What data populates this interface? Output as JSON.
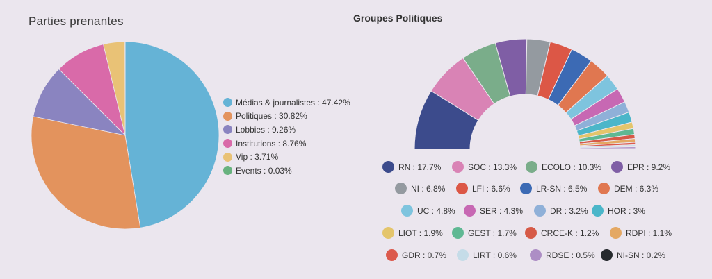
{
  "stakeholders_title": "Parties prenantes",
  "groups_title": "Groupes Politiques",
  "chart_data": [
    {
      "type": "pie",
      "title": "Parties prenantes",
      "series": [
        {
          "name": "Médias & journalistes",
          "value": 47.42,
          "label": "Médias & journalistes : 47.42%",
          "color": "#65b3d6"
        },
        {
          "name": "Politiques",
          "value": 30.82,
          "label": "Politiques : 30.82%",
          "color": "#e3935d"
        },
        {
          "name": "Lobbies",
          "value": 9.26,
          "label": "Lobbies : 9.26%",
          "color": "#8a84c0"
        },
        {
          "name": "Institutions",
          "value": 8.76,
          "label": "Institutions : 8.76%",
          "color": "#d96aa9"
        },
        {
          "name": "Vip",
          "value": 3.71,
          "label": "Vip : 3.71%",
          "color": "#e9c276"
        },
        {
          "name": "Events",
          "value": 0.03,
          "label": "Events : 0.03%",
          "color": "#68b27e"
        }
      ],
      "legend_placement": "right"
    },
    {
      "type": "pie",
      "subtype": "semicircle donut",
      "title": "Groupes Politiques",
      "series": [
        {
          "name": "RN",
          "value": 17.7,
          "label": "RN : 17.7%",
          "color": "#3c4b8c"
        },
        {
          "name": "SOC",
          "value": 13.3,
          "label": "SOC : 13.3%",
          "color": "#d983b5"
        },
        {
          "name": "ECOLO",
          "value": 10.3,
          "label": "ECOLO : 10.3%",
          "color": "#7aad8a"
        },
        {
          "name": "EPR",
          "value": 9.2,
          "label": "EPR : 9.2%",
          "color": "#7f5ea5"
        },
        {
          "name": "NI",
          "value": 6.8,
          "label": "NI : 6.8%",
          "color": "#949aa0"
        },
        {
          "name": "LFI",
          "value": 6.6,
          "label": "LFI : 6.6%",
          "color": "#dc5746"
        },
        {
          "name": "LR-SN",
          "value": 6.5,
          "label": "LR-SN : 6.5%",
          "color": "#3c6ab4"
        },
        {
          "name": "DEM",
          "value": 6.3,
          "label": "DEM : 6.3%",
          "color": "#e07750"
        },
        {
          "name": "UC",
          "value": 4.8,
          "label": "UC : 4.8%",
          "color": "#7ec4de"
        },
        {
          "name": "SER",
          "value": 4.3,
          "label": "SER : 4.3%",
          "color": "#c768b3"
        },
        {
          "name": "DR",
          "value": 3.2,
          "label": "DR : 3.2%",
          "color": "#8fb0d8"
        },
        {
          "name": "HOR",
          "value": 3,
          "label": "HOR : 3%",
          "color": "#4bb6c9"
        },
        {
          "name": "LIOT",
          "value": 1.9,
          "label": "LIOT : 1.9%",
          "color": "#e4c56b"
        },
        {
          "name": "GEST",
          "value": 1.7,
          "label": "GEST : 1.7%",
          "color": "#5fb893"
        },
        {
          "name": "CRCE-K",
          "value": 1.2,
          "label": "CRCE-K : 1.2%",
          "color": "#d65a47"
        },
        {
          "name": "RDPI",
          "value": 1.1,
          "label": "RDPI : 1.1%",
          "color": "#e4a863"
        },
        {
          "name": "GDR",
          "value": 0.7,
          "label": "GDR : 0.7%",
          "color": "#dc5a4d"
        },
        {
          "name": "LIRT",
          "value": 0.6,
          "label": "LIRT : 0.6%",
          "color": "#c5dce8"
        },
        {
          "name": "RDSE",
          "value": 0.5,
          "label": "RDSE : 0.5%",
          "color": "#ad8ec5"
        },
        {
          "name": "NI-SN",
          "value": 0.2,
          "label": "NI-SN : 0.2%",
          "color": "#262a2e"
        }
      ],
      "legend_placement": "bottom"
    }
  ]
}
